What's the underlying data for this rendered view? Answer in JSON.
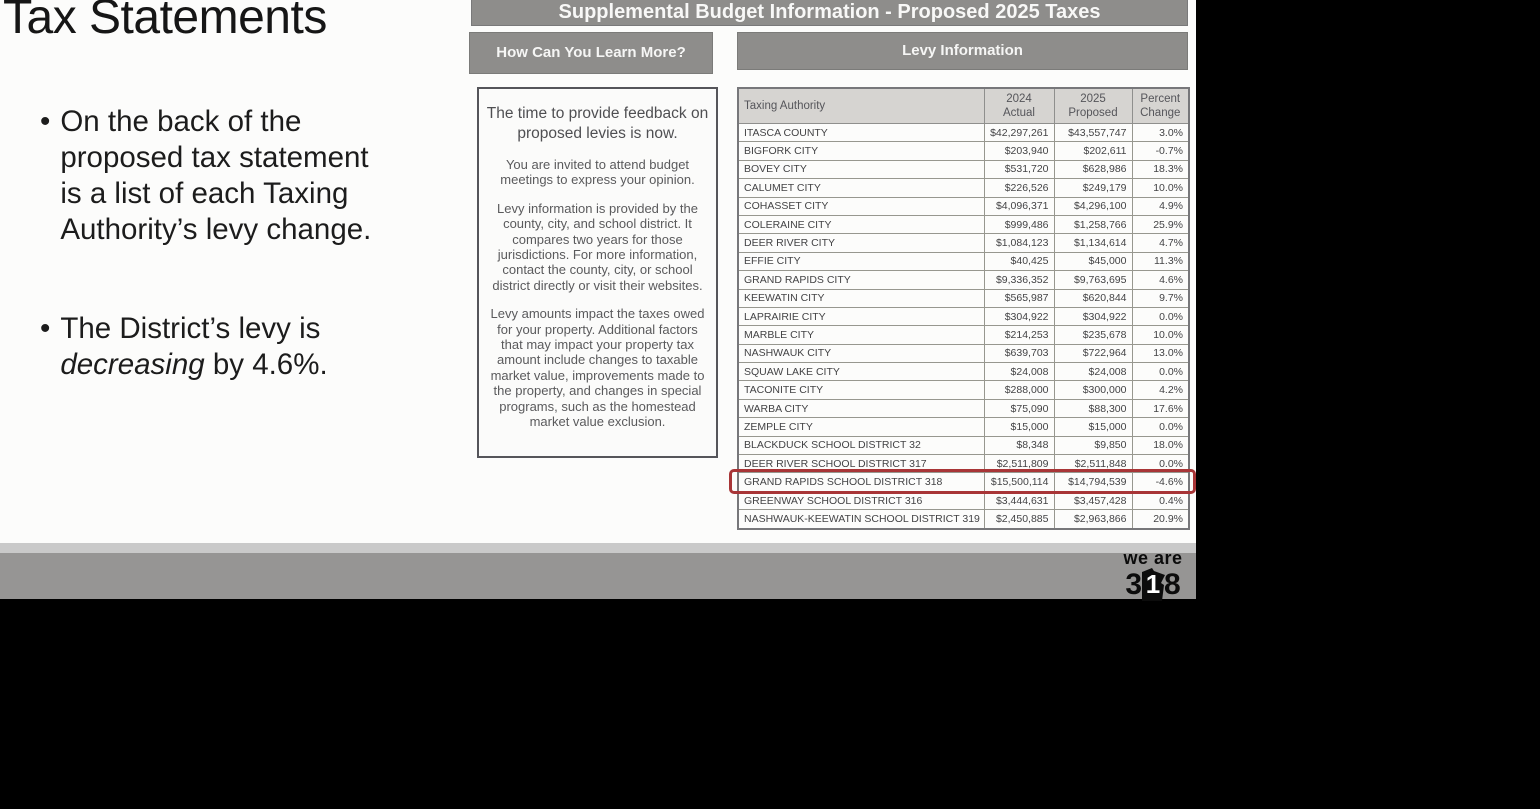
{
  "slide": {
    "title": "Tax Statements",
    "bullets": [
      {
        "text": "On the back of the\nproposed tax statement\nis a list of each Taxing\nAuthority’s levy change."
      },
      {
        "before": "The District’s levy is\n",
        "italic": "decreasing",
        "after": " by 4.6%."
      }
    ]
  },
  "flyer": {
    "banner": "Supplemental Budget Information - Proposed 2025 Taxes",
    "learn_more": {
      "heading": "How Can You Learn More?",
      "paragraphs": [
        "The time to provide feedback on proposed levies is now.",
        "You are invited to attend budget meetings to express your opinion.",
        "Levy information is provided by the county, city, and school district. It compares two years for those jurisdictions. For more information, contact the county, city, or school district directly or visit their websites.",
        "Levy amounts impact the taxes owed for your property. Additional factors that may impact your property tax amount include changes to taxable market value, improvements made to the property, and changes in special programs, such as the homestead market value exclusion."
      ]
    },
    "levy": {
      "heading": "Levy Information",
      "columns": [
        "Taxing Authority",
        "2024\nActual",
        "2025\nProposed",
        "Percent\nChange"
      ],
      "rows": [
        [
          "ITASCA COUNTY",
          "$42,297,261",
          "$43,557,747",
          "3.0%"
        ],
        [
          "BIGFORK CITY",
          "$203,940",
          "$202,611",
          "-0.7%"
        ],
        [
          "BOVEY CITY",
          "$531,720",
          "$628,986",
          "18.3%"
        ],
        [
          "CALUMET CITY",
          "$226,526",
          "$249,179",
          "10.0%"
        ],
        [
          "COHASSET CITY",
          "$4,096,371",
          "$4,296,100",
          "4.9%"
        ],
        [
          "COLERAINE CITY",
          "$999,486",
          "$1,258,766",
          "25.9%"
        ],
        [
          "DEER RIVER CITY",
          "$1,084,123",
          "$1,134,614",
          "4.7%"
        ],
        [
          "EFFIE CITY",
          "$40,425",
          "$45,000",
          "11.3%"
        ],
        [
          "GRAND RAPIDS CITY",
          "$9,336,352",
          "$9,763,695",
          "4.6%"
        ],
        [
          "KEEWATIN CITY",
          "$565,987",
          "$620,844",
          "9.7%"
        ],
        [
          "LAPRAIRIE CITY",
          "$304,922",
          "$304,922",
          "0.0%"
        ],
        [
          "MARBLE CITY",
          "$214,253",
          "$235,678",
          "10.0%"
        ],
        [
          "NASHWAUK CITY",
          "$639,703",
          "$722,964",
          "13.0%"
        ],
        [
          "SQUAW LAKE CITY",
          "$24,008",
          "$24,008",
          "0.0%"
        ],
        [
          "TACONITE CITY",
          "$288,000",
          "$300,000",
          "4.2%"
        ],
        [
          "WARBA CITY",
          "$75,090",
          "$88,300",
          "17.6%"
        ],
        [
          "ZEMPLE CITY",
          "$15,000",
          "$15,000",
          "0.0%"
        ],
        [
          "BLACKDUCK SCHOOL DISTRICT 32",
          "$8,348",
          "$9,850",
          "18.0%"
        ],
        [
          "DEER RIVER SCHOOL DISTRICT 317",
          "$2,511,809",
          "$2,511,848",
          "0.0%"
        ],
        [
          "GRAND RAPIDS SCHOOL DISTRICT 318",
          "$15,500,114",
          "$14,794,539",
          "-4.6%"
        ],
        [
          "GREENWAY SCHOOL DISTRICT 316",
          "$3,444,631",
          "$3,457,428",
          "0.4%"
        ],
        [
          "NASHWAUK-KEEWATIN SCHOOL DISTRICT 319",
          "$2,450,885",
          "$2,963,866",
          "20.9%"
        ]
      ],
      "highlight_index": 19,
      "highlight_color": "#a83537"
    }
  },
  "footer": {
    "logo_line1": "we are",
    "logo_digit_left": "3",
    "logo_digit_mid": "1",
    "logo_digit_right": "8",
    "bar_color": "#969594",
    "strip_color": "#c9c9c9"
  }
}
